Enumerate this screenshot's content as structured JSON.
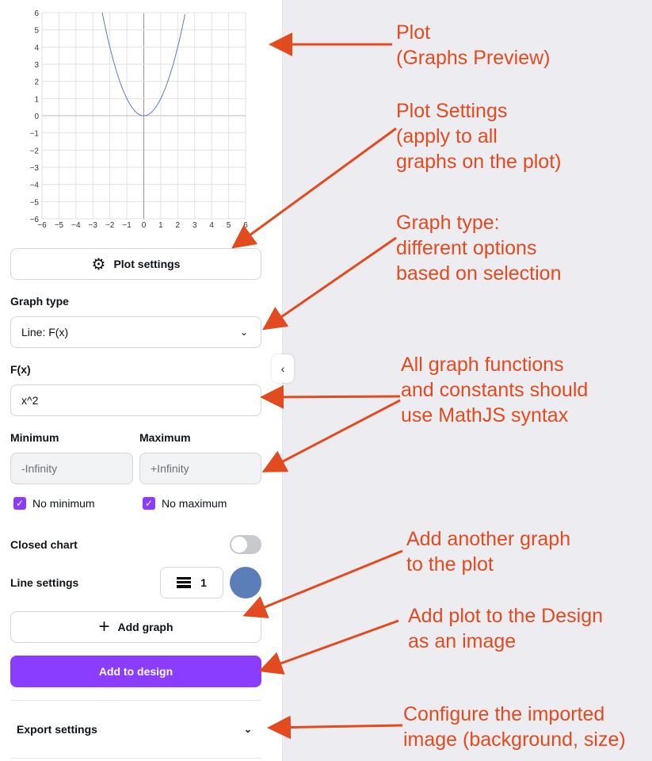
{
  "plot": {
    "function": "x^2",
    "x_range": [
      -6,
      6
    ],
    "y_range": [
      -6,
      6
    ],
    "x_ticks": [
      "−6",
      "−5",
      "−4",
      "−3",
      "−2",
      "−1",
      "0",
      "1",
      "2",
      "3",
      "4",
      "5",
      "6"
    ],
    "y_ticks": [
      "6",
      "5",
      "4",
      "3",
      "2",
      "1",
      "0",
      "−1",
      "−2",
      "−3",
      "−4",
      "−5",
      "−6"
    ],
    "grid": true,
    "line_color": "#5b7db8"
  },
  "plot_settings_label": "Plot settings",
  "graph_type": {
    "label": "Graph type",
    "value": "Line: F(x)"
  },
  "fx": {
    "label": "F(x)",
    "value": "x^2"
  },
  "minimum": {
    "label": "Minimum",
    "placeholder": "-Infinity",
    "checkbox_label": "No minimum",
    "checked": true
  },
  "maximum": {
    "label": "Maximum",
    "placeholder": "+Infinity",
    "checkbox_label": "No maximum",
    "checked": true
  },
  "closed_chart": {
    "label": "Closed chart",
    "on": false
  },
  "line_settings": {
    "label": "Line settings",
    "width": "1",
    "color": "#5b7db8"
  },
  "add_graph_label": "Add graph",
  "add_to_design_label": "Add to design",
  "export_settings_label": "Export settings",
  "accent_color": "#8b3dff",
  "annotations": [
    "Plot\n(Graphs Preview)",
    "Plot Settings\n(apply to all\ngraphs on the plot)",
    "Graph type:\ndifferent options\nbased on selection",
    "All graph functions\nand constants should\nuse MathJS syntax",
    "Add another graph\nto the plot",
    "Add plot to the Design\nas an image",
    "Configure the imported\nimage (background, size)"
  ]
}
